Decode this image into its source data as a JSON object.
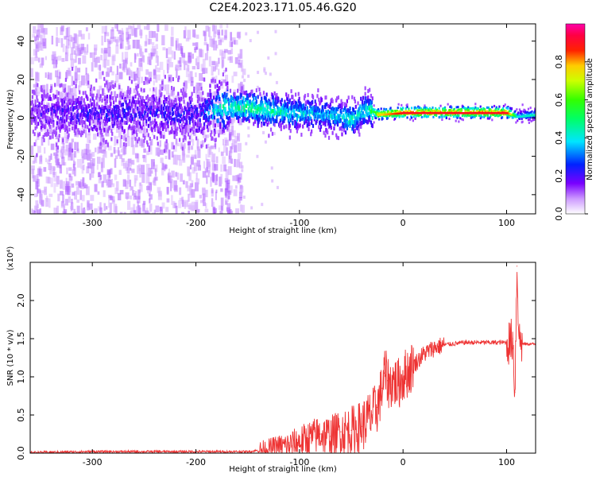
{
  "title": "C2E4.2023.171.05.46.G20",
  "chart_data": [
    {
      "type": "heatmap",
      "xlabel": "Height of straight line (km)",
      "ylabel": "Frequency (Hz)",
      "xlim": [
        -360,
        128
      ],
      "ylim": [
        -50,
        49
      ],
      "xticks": [
        -300,
        -200,
        -100,
        0,
        100
      ],
      "yticks": [
        -40,
        -20,
        0,
        20,
        40
      ],
      "colorbar": {
        "label": "Normalized spectral amplitude",
        "range": [
          0.0,
          1.0
        ],
        "ticks": [
          "0.0",
          "0.2",
          "0.4",
          "0.6",
          "0.8"
        ],
        "colormap": "rainbow (white to purple to blue to cyan to green to yellow to red to magenta)"
      },
      "ridge": [
        {
          "x": -360,
          "freq": 2,
          "amp": 0.15
        },
        {
          "x": -300,
          "freq": 2,
          "amp": 0.2
        },
        {
          "x": -250,
          "freq": 2,
          "amp": 0.2
        },
        {
          "x": -200,
          "freq": 1,
          "amp": 0.2
        },
        {
          "x": -175,
          "freq": 5,
          "amp": 0.45
        },
        {
          "x": -150,
          "freq": 5,
          "amp": 0.5
        },
        {
          "x": -125,
          "freq": 3,
          "amp": 0.45
        },
        {
          "x": -100,
          "freq": 2,
          "amp": 0.4
        },
        {
          "x": -75,
          "freq": 1,
          "amp": 0.35
        },
        {
          "x": -50,
          "freq": -1,
          "amp": 0.45
        },
        {
          "x": -35,
          "freq": 4,
          "amp": 0.4
        },
        {
          "x": -25,
          "freq": 1,
          "amp": 0.7
        },
        {
          "x": 0,
          "freq": 2,
          "amp": 0.85
        },
        {
          "x": 50,
          "freq": 2,
          "amp": 0.85
        },
        {
          "x": 100,
          "freq": 2,
          "amp": 0.85
        },
        {
          "x": 110,
          "freq": 0,
          "amp": 0.35
        },
        {
          "x": 128,
          "freq": 1,
          "amp": 0.4
        }
      ]
    },
    {
      "type": "line",
      "xlabel": "Height of straight line (km)",
      "ylabel": "SNR (10 * v/v)",
      "y_multiplier": "(x10⁴)",
      "xlim": [
        -360,
        128
      ],
      "ylim": [
        0.0,
        2.5
      ],
      "xticks": [
        -300,
        -200,
        -100,
        0,
        100
      ],
      "yticks": [
        "0.0",
        "0.5",
        "1.0",
        "1.5",
        "2.0"
      ],
      "color": "#ee3333",
      "series": [
        {
          "x": [
            -360,
            -300,
            -250,
            -200,
            -150,
            -130,
            -120,
            -110,
            -100,
            -90,
            -80,
            -70,
            -60,
            -50,
            -40,
            -30,
            -25,
            -20,
            -18,
            -15,
            -12,
            -10,
            -5,
            0,
            10,
            20,
            30,
            40,
            60,
            80,
            100,
            103,
            106,
            108,
            110,
            112,
            115,
            120,
            128
          ],
          "y": [
            0.01,
            0.02,
            0.02,
            0.02,
            0.02,
            0.05,
            0.08,
            0.1,
            0.15,
            0.2,
            0.25,
            0.22,
            0.28,
            0.3,
            0.35,
            0.5,
            0.6,
            0.85,
            1.05,
            0.95,
            0.9,
            0.95,
            0.9,
            1.0,
            1.15,
            1.3,
            1.38,
            1.42,
            1.45,
            1.45,
            1.45,
            1.45,
            1.5,
            0.8,
            2.45,
            1.5,
            1.43,
            1.43,
            1.43
          ]
        }
      ]
    }
  ]
}
